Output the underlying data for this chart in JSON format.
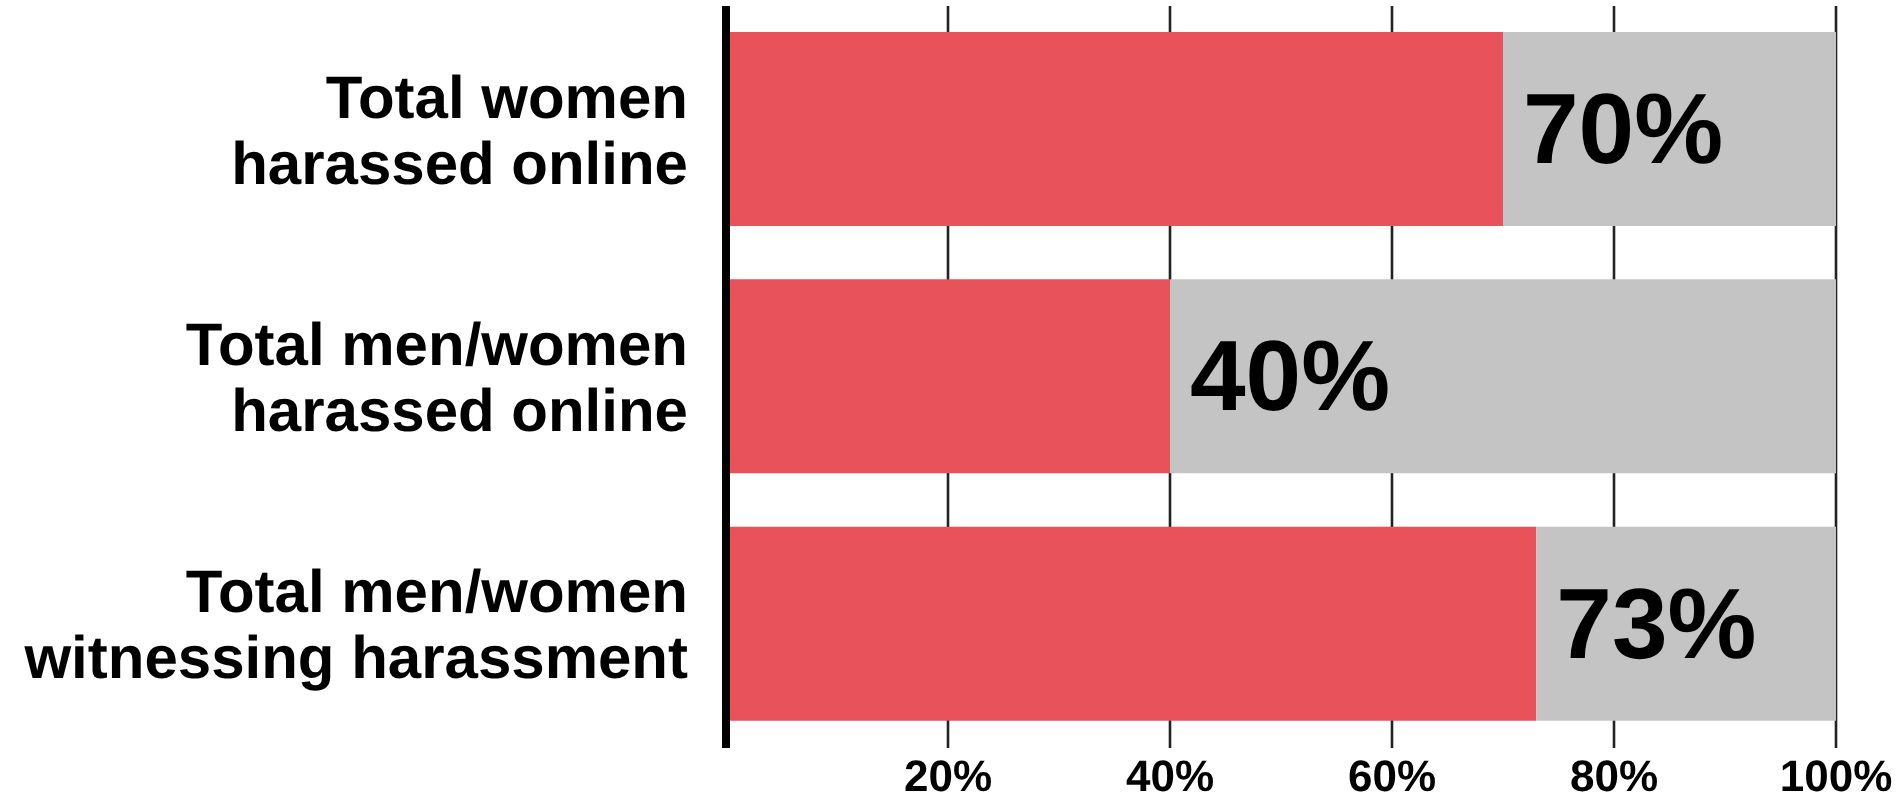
{
  "chart_data": {
    "type": "bar",
    "orientation": "horizontal",
    "stacked": true,
    "categories": [
      "Total women\nharassed online",
      "Total men/women\nharassed online",
      "Total men/women\nwitnessing harassment"
    ],
    "series": [
      {
        "color": "#e8525a",
        "values": [
          70,
          40,
          73
        ],
        "value_labels": [
          "70%",
          "40%",
          "73%"
        ]
      },
      {
        "color": "#c4c4c4",
        "values": [
          30,
          60,
          27
        ]
      }
    ],
    "xlim": [
      0,
      100
    ],
    "xticks": [
      {
        "value": 20,
        "label": "20%"
      },
      {
        "value": 40,
        "label": "40%"
      },
      {
        "value": 60,
        "label": "60%"
      },
      {
        "value": 80,
        "label": "80%"
      },
      {
        "value": 100,
        "label": "100%"
      }
    ],
    "grid": "x"
  }
}
